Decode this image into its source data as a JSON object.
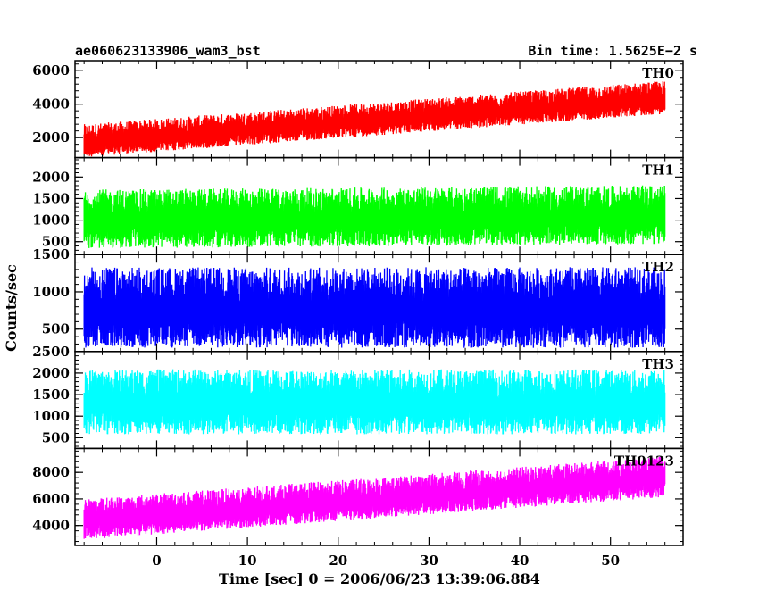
{
  "header": {
    "left_title": "ae060623133906_wam3_bst",
    "right_title": "Bin time: 1.5625E−2 s"
  },
  "chart_data": {
    "type": "line",
    "xlabel": "Time [sec] 0 = 2006/06/23 13:39:06.884",
    "ylabel": "Counts/sec",
    "xlim": [
      -9,
      58
    ],
    "x_ticks": [
      0,
      10,
      20,
      30,
      40,
      50
    ],
    "x_tick_labels": [
      "0",
      "10",
      "20",
      "30",
      "40",
      "50"
    ],
    "data_x_range": [
      -8,
      56
    ],
    "grid": false,
    "legend": "none",
    "panels": [
      {
        "name": "TH0",
        "color": "#ff0000",
        "ylim": [
          800,
          6600
        ],
        "y_ticks": [
          2000,
          4000,
          6000
        ],
        "y_tick_labels": [
          "2000",
          "4000",
          "6000"
        ],
        "trend_start": 1700,
        "trend_end": 4300,
        "spread": 550
      },
      {
        "name": "TH1",
        "color": "#00ff00",
        "ylim": [
          200,
          2450
        ],
        "y_ticks": [
          500,
          1000,
          1500,
          2000
        ],
        "y_tick_labels": [
          "500",
          "1000",
          "1500",
          "2000"
        ],
        "trend_start": 950,
        "trend_end": 1050,
        "spread": 380
      },
      {
        "name": "TH2",
        "color": "#0000ff",
        "ylim": [
          200,
          1500
        ],
        "y_ticks": [
          500,
          1000,
          1500
        ],
        "y_tick_labels": [
          "500",
          "1000",
          "1500"
        ],
        "trend_start": 730,
        "trend_end": 730,
        "spread": 300
      },
      {
        "name": "TH3",
        "color": "#00ffff",
        "ylim": [
          250,
          2500
        ],
        "y_ticks": [
          500,
          1000,
          1500,
          2000,
          2500
        ],
        "y_tick_labels": [
          "500",
          "1000",
          "1500",
          "2000",
          "2500"
        ],
        "trend_start": 1250,
        "trend_end": 1250,
        "spread": 420
      },
      {
        "name": "TH0123",
        "color": "#ff00ff",
        "ylim": [
          2500,
          9800
        ],
        "y_ticks": [
          4000,
          6000,
          8000
        ],
        "y_tick_labels": [
          "4000",
          "6000",
          "8000"
        ],
        "trend_start": 4300,
        "trend_end": 7500,
        "spread": 850
      }
    ]
  }
}
